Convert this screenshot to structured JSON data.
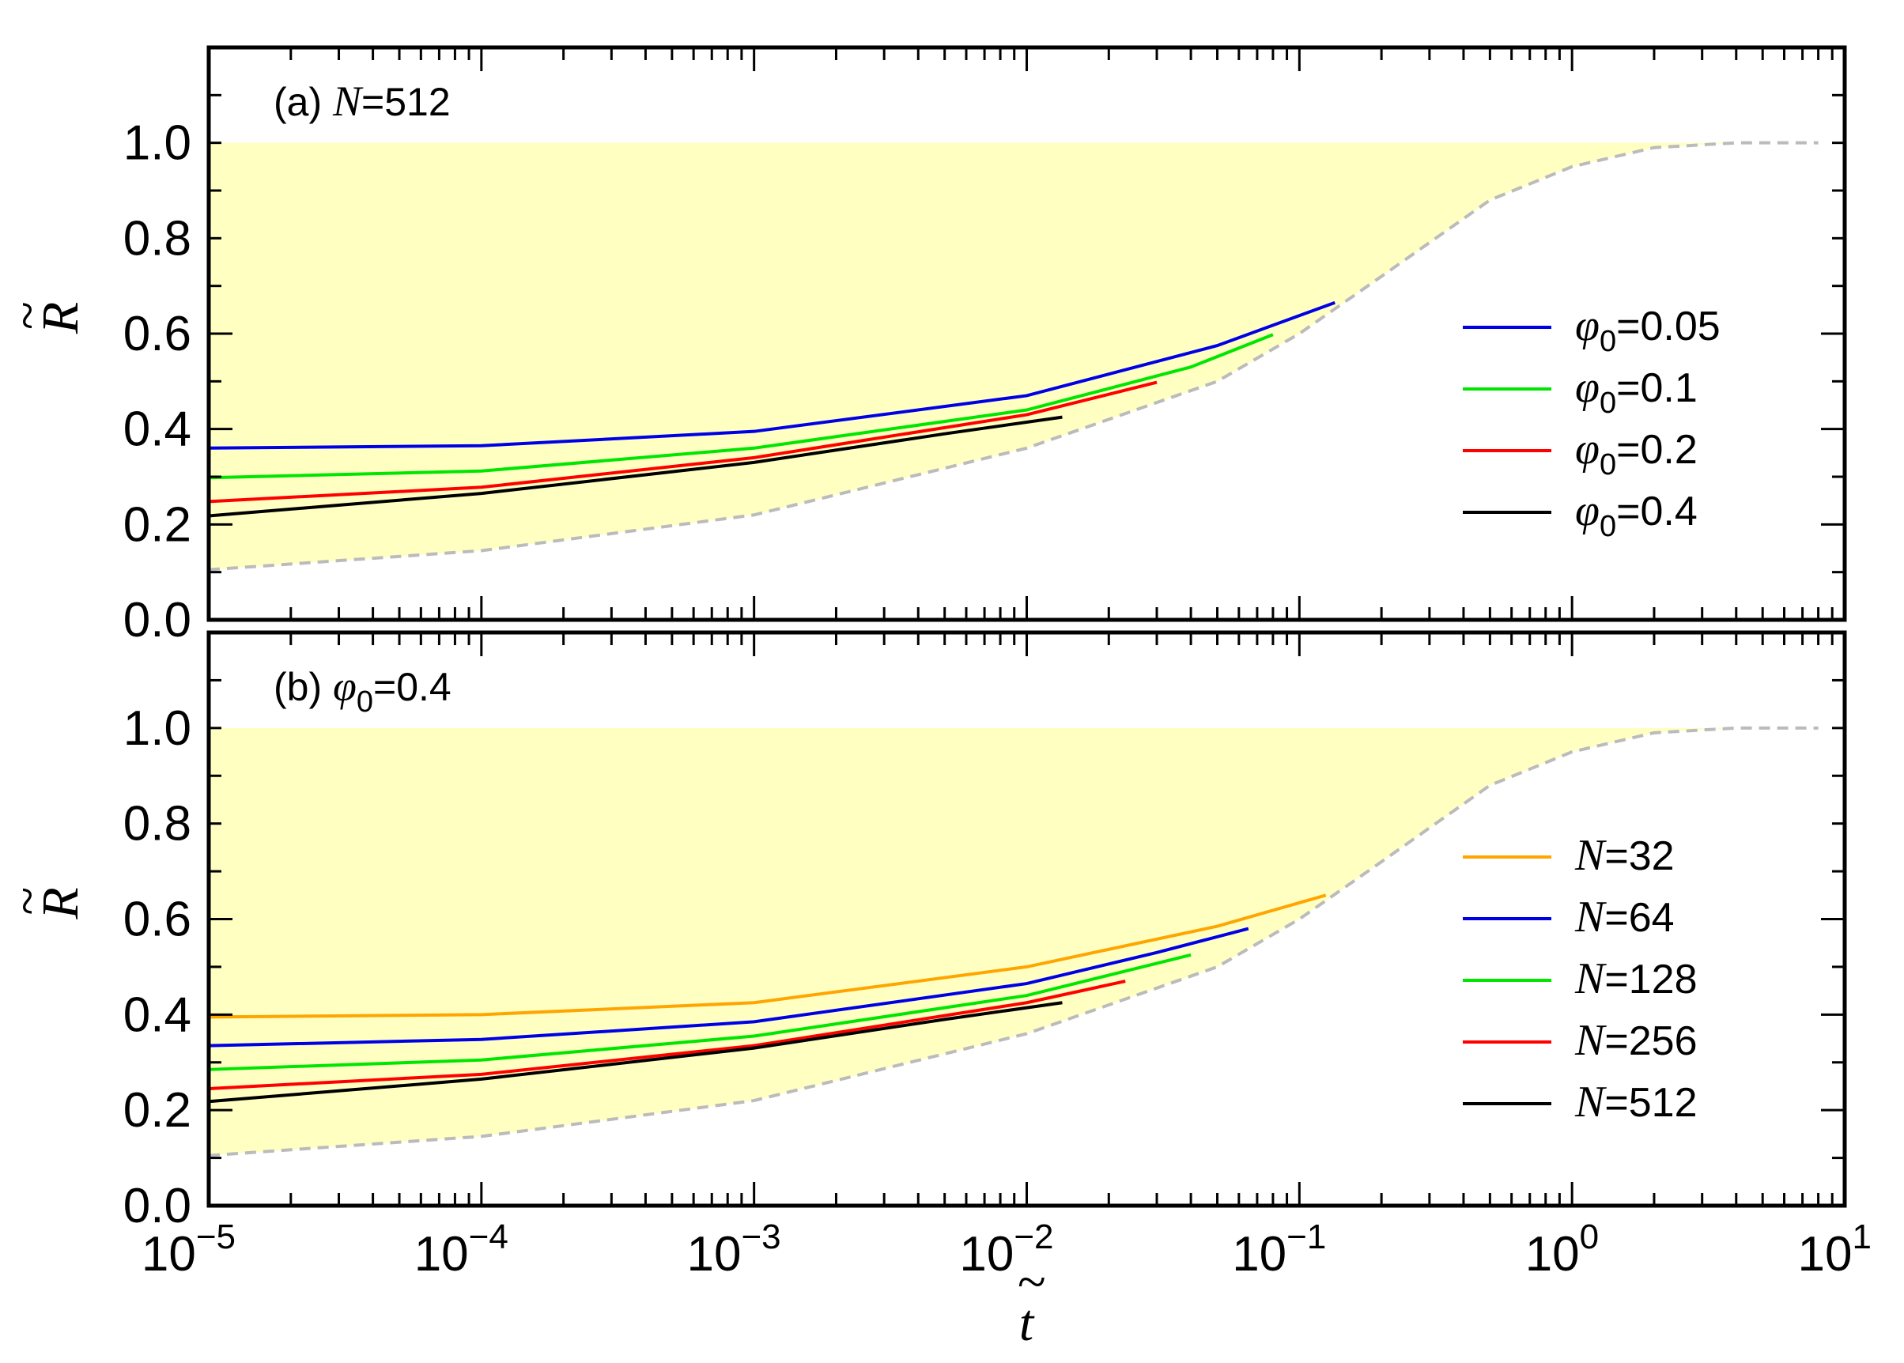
{
  "chart_data": [
    {
      "type": "line",
      "panel_label": {
        "prefix": "(a) ",
        "italic": "N",
        "suffix": "=512"
      },
      "xscale": "log",
      "xlim": [
        1e-05,
        10
      ],
      "ylim": [
        0.0,
        1.2
      ],
      "xlabel": "t",
      "ylabel": "R",
      "y_ticks": [
        "0.0",
        "0.2",
        "0.4",
        "0.6",
        "0.8",
        "1.0"
      ],
      "y_tick_values": [
        0.0,
        0.2,
        0.4,
        0.6,
        0.8,
        1.0
      ],
      "x_tick_labels_shown": false,
      "legend_position": "right",
      "boundary_curve": {
        "style": "dashed",
        "color": "#bbbbbb",
        "x": [
          1e-05,
          0.0001,
          0.001,
          0.01,
          0.05,
          0.1,
          0.2,
          0.5,
          1,
          2,
          4,
          8
        ],
        "y": [
          0.105,
          0.145,
          0.22,
          0.36,
          0.5,
          0.6,
          0.72,
          0.88,
          0.95,
          0.99,
          1.0,
          1.0
        ]
      },
      "shaded_region": {
        "color": "#ffffc2",
        "upper": 1.0
      },
      "series": [
        {
          "name_sym": "φ",
          "name_sub": "0",
          "name_val": "=0.05",
          "color": "#0000e6",
          "x": [
            1e-05,
            0.0001,
            0.001,
            0.01,
            0.05,
            0.135
          ],
          "y": [
            0.36,
            0.365,
            0.395,
            0.47,
            0.575,
            0.665
          ]
        },
        {
          "name_sym": "φ",
          "name_sub": "0",
          "name_val": "=0.1",
          "color": "#00e600",
          "x": [
            1e-05,
            0.0001,
            0.001,
            0.01,
            0.04,
            0.08
          ],
          "y": [
            0.298,
            0.312,
            0.36,
            0.44,
            0.53,
            0.598
          ]
        },
        {
          "name_sym": "φ",
          "name_sub": "0",
          "name_val": "=0.2",
          "color": "#ff0000",
          "x": [
            1e-05,
            0.0001,
            0.001,
            0.01,
            0.03
          ],
          "y": [
            0.248,
            0.278,
            0.34,
            0.43,
            0.498
          ]
        },
        {
          "name_sym": "φ",
          "name_sub": "0",
          "name_val": "=0.4",
          "color": "#000000",
          "x": [
            1e-05,
            0.0001,
            0.001,
            0.005,
            0.0135
          ],
          "y": [
            0.218,
            0.265,
            0.33,
            0.39,
            0.425
          ]
        }
      ]
    },
    {
      "type": "line",
      "panel_label": {
        "prefix": "(b) ",
        "sym": "φ",
        "sub": "0",
        "suffix": "=0.4"
      },
      "xscale": "log",
      "xlim": [
        1e-05,
        10
      ],
      "ylim": [
        0.0,
        1.2
      ],
      "xlabel": "t",
      "ylabel": "R",
      "y_ticks": [
        "0.0",
        "0.2",
        "0.4",
        "0.6",
        "0.8",
        "1.0"
      ],
      "y_tick_values": [
        0.0,
        0.2,
        0.4,
        0.6,
        0.8,
        1.0
      ],
      "x_ticks": [
        "10",
        "10",
        "10",
        "10",
        "10",
        "10",
        "10"
      ],
      "x_tick_exponents": [
        "−5",
        "−4",
        "−3",
        "−2",
        "−1",
        "0",
        "1"
      ],
      "x_tick_values": [
        1e-05,
        0.0001,
        0.001,
        0.01,
        0.1,
        1,
        10
      ],
      "legend_position": "right",
      "boundary_curve": {
        "style": "dashed",
        "color": "#bbbbbb",
        "x": [
          1e-05,
          0.0001,
          0.001,
          0.01,
          0.05,
          0.1,
          0.2,
          0.5,
          1,
          2,
          4,
          8
        ],
        "y": [
          0.105,
          0.145,
          0.22,
          0.36,
          0.5,
          0.6,
          0.72,
          0.88,
          0.95,
          0.99,
          1.0,
          1.0
        ]
      },
      "shaded_region": {
        "color": "#ffffc2",
        "upper": 1.0
      },
      "series": [
        {
          "name_italic": "N",
          "name_val": "=32",
          "color": "#ffa500",
          "x": [
            1e-05,
            0.0001,
            0.001,
            0.01,
            0.05,
            0.125
          ],
          "y": [
            0.395,
            0.4,
            0.425,
            0.5,
            0.585,
            0.65
          ]
        },
        {
          "name_italic": "N",
          "name_val": "=64",
          "color": "#0000e6",
          "x": [
            1e-05,
            0.0001,
            0.001,
            0.01,
            0.03,
            0.065
          ],
          "y": [
            0.335,
            0.348,
            0.385,
            0.465,
            0.53,
            0.58
          ]
        },
        {
          "name_italic": "N",
          "name_val": "=128",
          "color": "#00e600",
          "x": [
            1e-05,
            0.0001,
            0.001,
            0.01,
            0.04
          ],
          "y": [
            0.285,
            0.305,
            0.355,
            0.44,
            0.525
          ]
        },
        {
          "name_italic": "N",
          "name_val": "=256",
          "color": "#ff0000",
          "x": [
            1e-05,
            0.0001,
            0.001,
            0.01,
            0.023
          ],
          "y": [
            0.245,
            0.275,
            0.335,
            0.425,
            0.47
          ]
        },
        {
          "name_italic": "N",
          "name_val": "=512",
          "color": "#000000",
          "x": [
            1e-05,
            0.0001,
            0.001,
            0.005,
            0.0135
          ],
          "y": [
            0.218,
            0.265,
            0.33,
            0.39,
            0.425
          ]
        }
      ]
    }
  ]
}
